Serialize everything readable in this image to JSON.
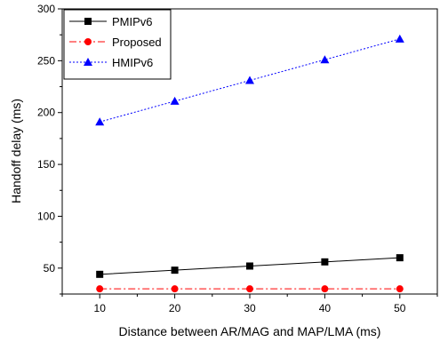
{
  "chart_data": {
    "type": "line",
    "xlabel": "Distance between AR/MAG and MAP/LMA (ms)",
    "ylabel": "Handoff delay (ms)",
    "x": [
      10,
      20,
      30,
      40,
      50
    ],
    "xlim": [
      5,
      55
    ],
    "ylim": [
      25,
      300
    ],
    "xticks": [
      10,
      20,
      30,
      40,
      50
    ],
    "yticks": [
      50,
      100,
      150,
      200,
      250,
      300
    ],
    "grid": false,
    "legend_position": "top-left",
    "series": [
      {
        "name": "PMIPv6",
        "values": [
          44,
          48,
          52,
          56,
          60
        ],
        "color": "#000000",
        "line": "solid",
        "marker": "square"
      },
      {
        "name": "Proposed",
        "values": [
          30,
          30,
          30,
          30,
          30
        ],
        "color": "#ff0000",
        "line": "dashdot",
        "marker": "circle"
      },
      {
        "name": "HMIPv6",
        "values": [
          191,
          211,
          231,
          251,
          271
        ],
        "color": "#0000ff",
        "line": "dotted",
        "marker": "triangle"
      }
    ]
  }
}
